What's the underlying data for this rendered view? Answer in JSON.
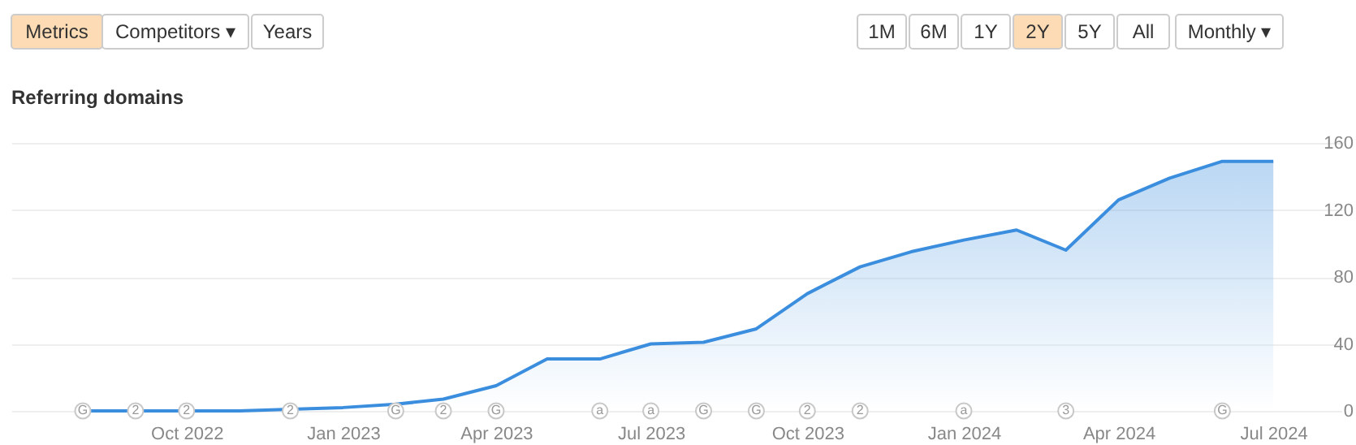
{
  "chart_data": {
    "type": "area",
    "title": "Referring domains",
    "x": [
      "2022-08",
      "2022-09",
      "2022-10",
      "2022-11",
      "2022-12",
      "2023-01",
      "2023-02",
      "2023-03",
      "2023-04",
      "2023-05",
      "2023-06",
      "2023-07",
      "2023-08",
      "2023-09",
      "2023-10",
      "2023-11",
      "2023-12",
      "2024-01",
      "2024-02",
      "2024-03",
      "2024-04",
      "2024-05",
      "2024-06",
      "2024-07"
    ],
    "series": [
      {
        "color": "#3b8ede",
        "values": [
          0,
          0,
          0,
          0,
          1,
          2,
          4,
          7,
          15,
          31,
          31,
          40,
          41,
          49,
          70,
          86,
          95,
          102,
          108,
          96,
          126,
          139,
          149,
          149
        ]
      }
    ],
    "xlim": [
      "2022-06-20",
      "2024-08-10"
    ],
    "xticks": [
      {
        "value": "2022-10",
        "label": "Oct 2022"
      },
      {
        "value": "2023-01",
        "label": "Jan 2023"
      },
      {
        "value": "2023-04",
        "label": "Apr 2023"
      },
      {
        "value": "2023-07",
        "label": "Jul 2023"
      },
      {
        "value": "2023-10",
        "label": "Oct 2023"
      },
      {
        "value": "2024-01",
        "label": "Jan 2024"
      },
      {
        "value": "2024-04",
        "label": "Apr 2024"
      },
      {
        "value": "2024-07",
        "label": "Jul 2024"
      }
    ],
    "ylim": [
      0,
      160
    ],
    "yticks": [
      0,
      40,
      80,
      120,
      160
    ],
    "grid": "y",
    "annotations": [
      "Metrics",
      "Competitors ▾",
      "Years",
      "1M",
      "6M",
      "1Y",
      "2Y",
      "5Y",
      "All",
      "Monthly ▾",
      {
        "text": "G",
        "x": "2022-08",
        "y": 0
      },
      {
        "text": "2",
        "x": "2022-09",
        "y": 0
      },
      {
        "text": "2",
        "x": "2022-10",
        "y": 0
      },
      {
        "text": "2",
        "x": "2022-12",
        "y": 0
      },
      {
        "text": "G",
        "x": "2023-02",
        "y": 0
      },
      {
        "text": "2",
        "x": "2023-03",
        "y": 0
      },
      {
        "text": "G",
        "x": "2023-04",
        "y": 0
      },
      {
        "text": "a",
        "x": "2023-06",
        "y": 0
      },
      {
        "text": "a",
        "x": "2023-07",
        "y": 0
      },
      {
        "text": "G",
        "x": "2023-08",
        "y": 0
      },
      {
        "text": "G",
        "x": "2023-09",
        "y": 0
      },
      {
        "text": "2",
        "x": "2023-10",
        "y": 0
      },
      {
        "text": "2",
        "x": "2023-11",
        "y": 0
      },
      {
        "text": "a",
        "x": "2024-01",
        "y": 0
      },
      {
        "text": "3",
        "x": "2024-03",
        "y": 0
      },
      {
        "text": "G",
        "x": "2024-06",
        "y": 0
      }
    ]
  }
}
